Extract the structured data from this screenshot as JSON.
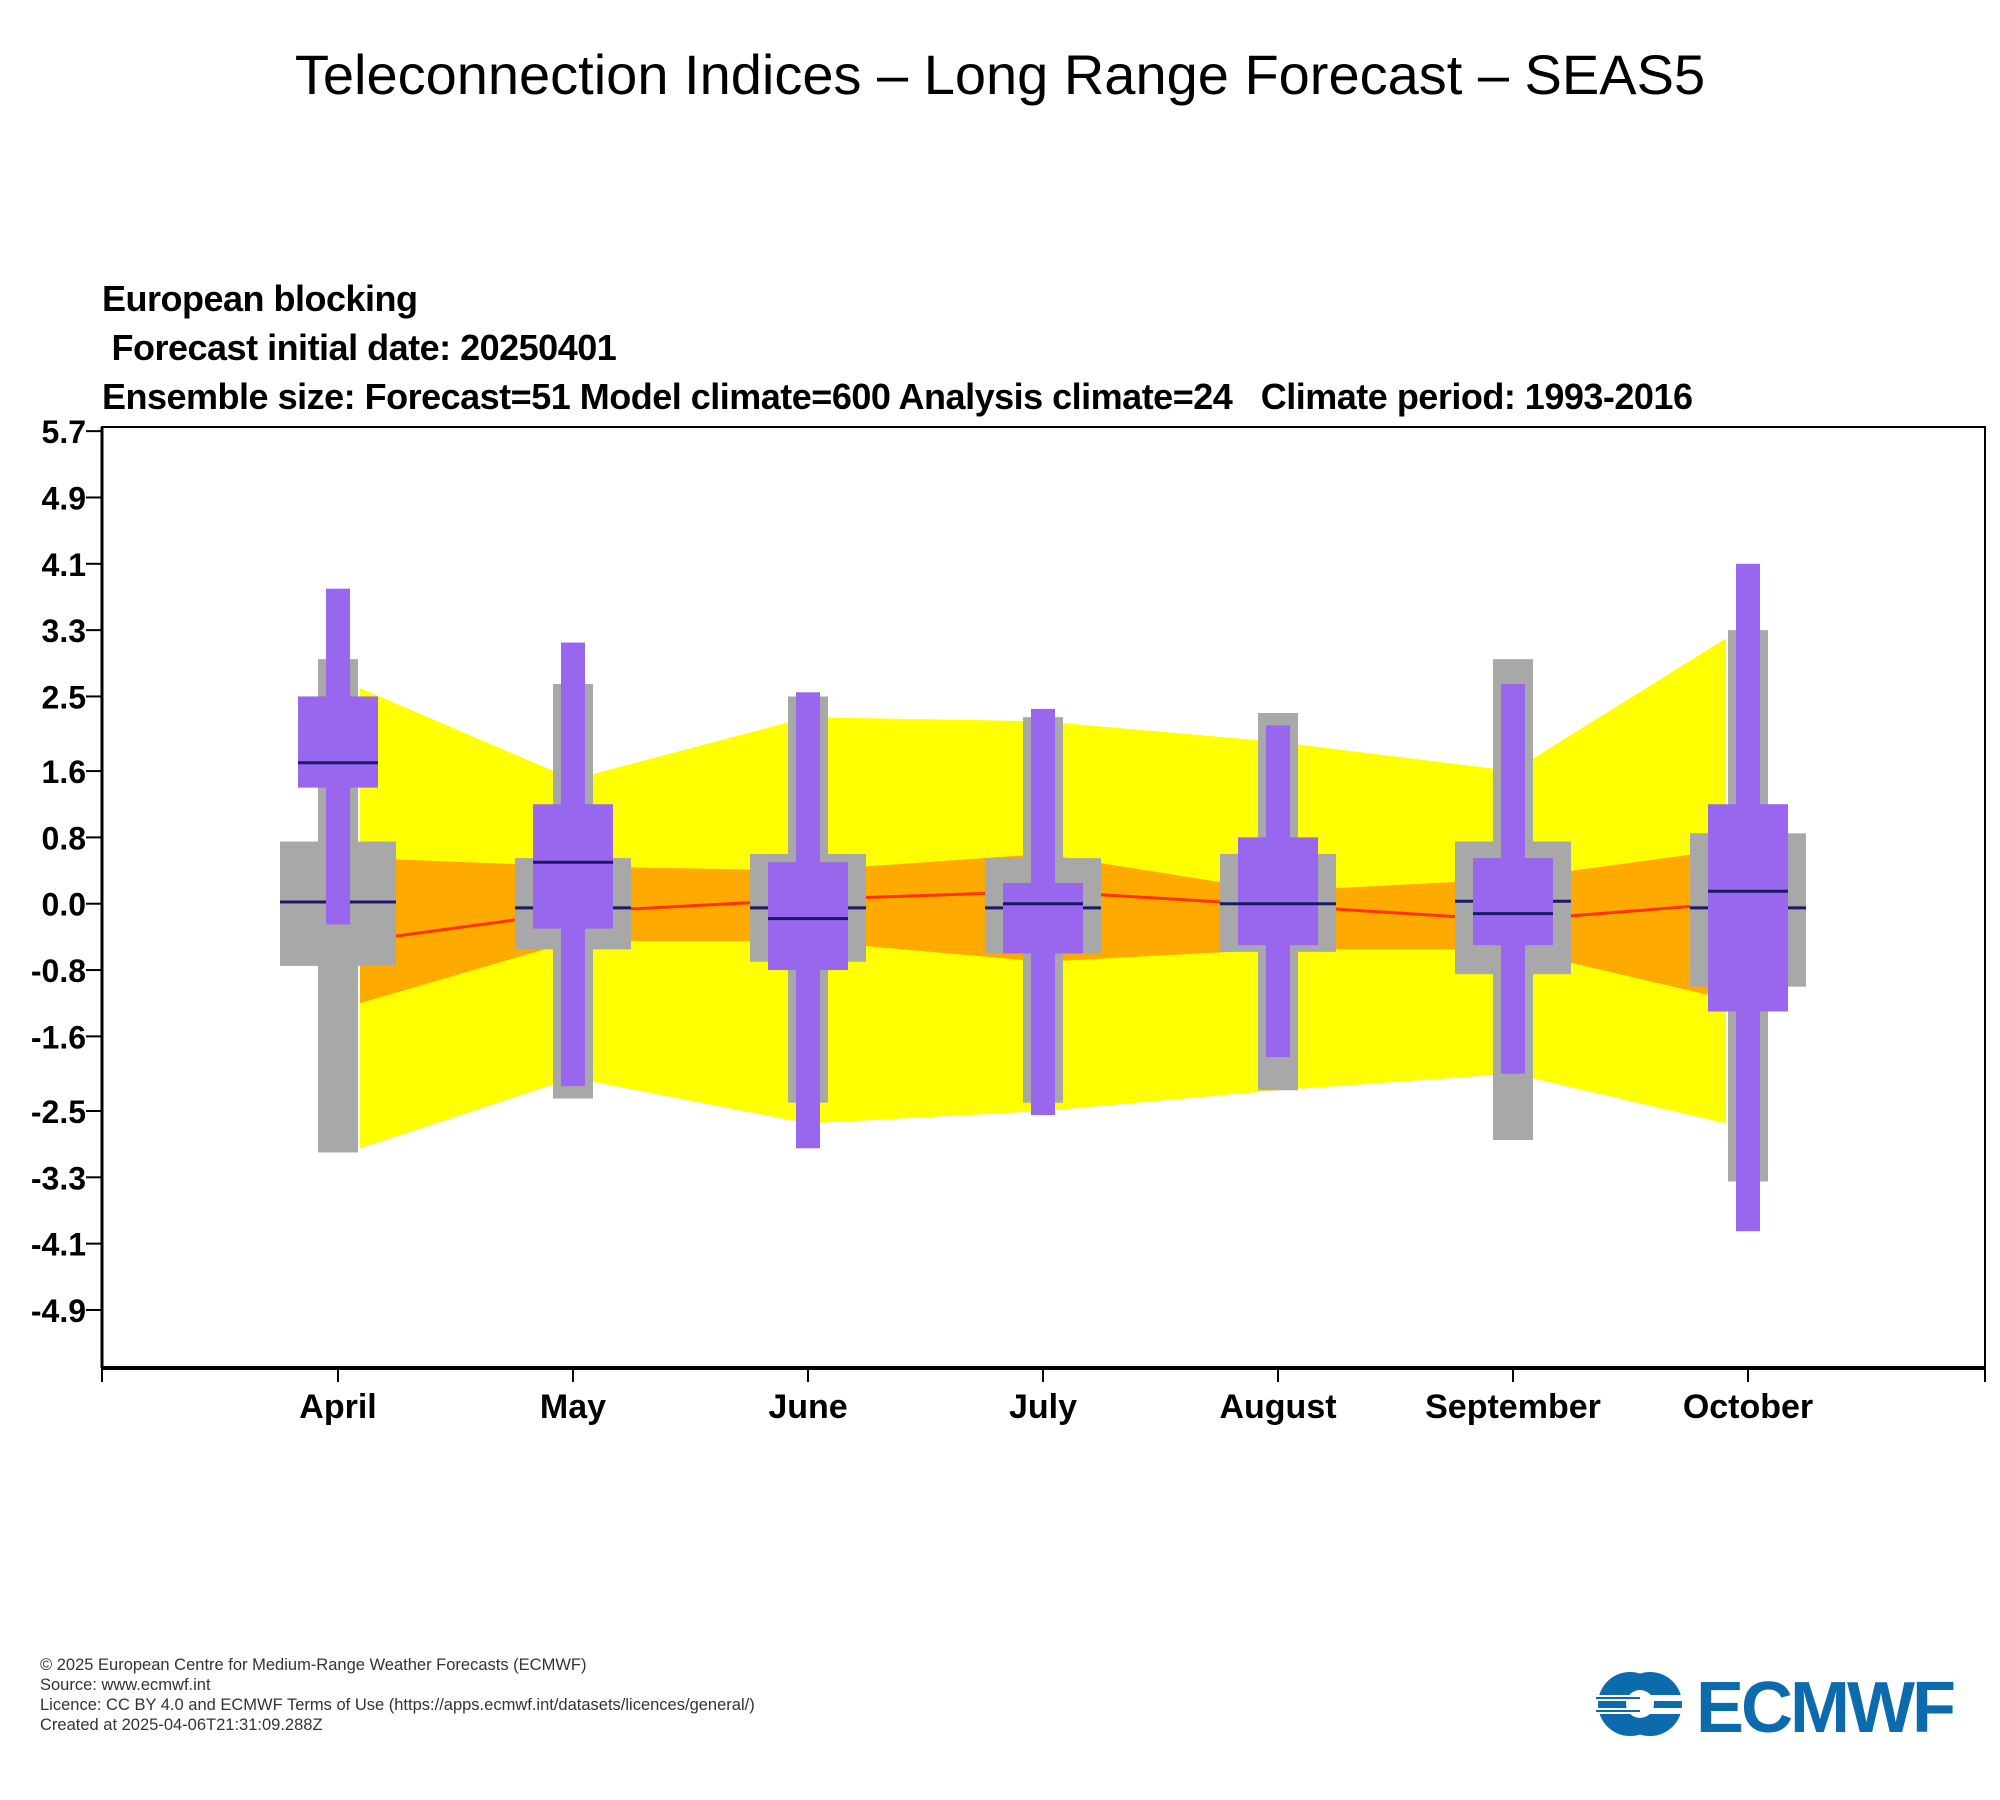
{
  "page": {
    "title": "Teleconnection Indices – Long Range Forecast – SEAS5",
    "subtitle_lines": [
      "European blocking",
      " Forecast initial date: 20250401",
      "Ensemble size: Forecast=51 Model climate=600 Analysis climate=24   Climate period: 1993-2016"
    ],
    "footer": [
      "© 2025 European Centre for Medium-Range Weather Forecasts (ECMWF)",
      "Source: www.ecmwf.int",
      "Licence: CC BY 4.0 and ECMWF Terms of Use (https://apps.ecmwf.int/datasets/licences/general/)",
      "Created at 2025-04-06T21:31:09.288Z"
    ],
    "logo_text": "ECMWF"
  },
  "colors": {
    "outer_band": "#ffff00",
    "inner_band": "#ffaa00",
    "median_line": "#ff3300",
    "climate_box": "#a8a8a8",
    "forecast_box": "#9966ee",
    "median_tick": "#1a1a66",
    "logo": "#0b6bad"
  },
  "chart_data": {
    "type": "box",
    "categories": [
      "April",
      "May",
      "June",
      "July",
      "August",
      "September",
      "October"
    ],
    "yticks": [
      "5.7",
      "4.9",
      "4.1",
      "3.3",
      "2.5",
      "1.6",
      "0.8",
      "0.0",
      "-0.8",
      "-1.6",
      "-2.5",
      "-3.3",
      "-4.1",
      "-4.9"
    ],
    "ylim": [
      -5.6,
      5.75
    ],
    "analysis_climate": {
      "outer_upper": [
        2.6,
        1.5,
        2.25,
        2.2,
        1.95,
        1.6,
        3.2
      ],
      "outer_lower": [
        -2.95,
        -2.1,
        -2.65,
        -2.5,
        -2.25,
        -2.05,
        -2.65
      ],
      "inner_upper": [
        0.55,
        0.45,
        0.4,
        0.6,
        0.15,
        0.3,
        0.65
      ],
      "inner_lower": [
        -1.2,
        -0.45,
        -0.45,
        -0.7,
        -0.55,
        -0.55,
        -1.15
      ],
      "median": [
        -0.45,
        -0.1,
        0.05,
        0.15,
        -0.02,
        -0.2,
        0.0
      ]
    },
    "model_climate": {
      "whisker_low": [
        -3.0,
        -2.35,
        -2.4,
        -2.4,
        -2.25,
        -2.85,
        -3.35
      ],
      "whisker_high": [
        2.95,
        2.65,
        2.5,
        2.25,
        2.3,
        2.95,
        3.3
      ],
      "q1": [
        -0.75,
        -0.55,
        -0.7,
        -0.6,
        -0.58,
        -0.85,
        -1.0
      ],
      "q3": [
        0.75,
        0.55,
        0.6,
        0.55,
        0.6,
        0.75,
        0.85
      ],
      "median": [
        0.02,
        -0.05,
        -0.05,
        -0.05,
        0.0,
        0.03,
        -0.05
      ]
    },
    "forecast": {
      "whisker_low": [
        -0.25,
        -2.2,
        -2.95,
        -2.55,
        -1.85,
        -2.05,
        -3.95
      ],
      "whisker_high": [
        3.8,
        3.15,
        2.55,
        2.35,
        2.15,
        2.65,
        4.1
      ],
      "q1": [
        1.4,
        -0.3,
        -0.8,
        -0.6,
        -0.5,
        -0.5,
        -1.3
      ],
      "q3": [
        2.5,
        1.2,
        0.5,
        0.25,
        0.8,
        0.55,
        1.2
      ],
      "median": [
        1.7,
        0.5,
        -0.18,
        0.0,
        0.0,
        -0.12,
        0.15
      ]
    }
  }
}
